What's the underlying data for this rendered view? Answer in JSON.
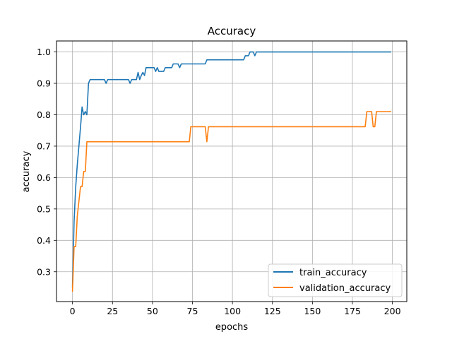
{
  "chart_data": {
    "type": "line",
    "title": "Accuracy",
    "xlabel": "epochs",
    "ylabel": "accuracy",
    "xlim": [
      -10,
      209
    ],
    "ylim": [
      0.205,
      1.035
    ],
    "xticks": [
      0,
      25,
      50,
      75,
      100,
      125,
      150,
      175,
      200
    ],
    "yticks": [
      0.3,
      0.4,
      0.5,
      0.6,
      0.7,
      0.8,
      0.9,
      1.0
    ],
    "ytick_labels": [
      "0.3",
      "0.4",
      "0.5",
      "0.6",
      "0.7",
      "0.8",
      "0.9",
      "1.0"
    ],
    "grid": true,
    "legend_position": "lower-right",
    "series": [
      {
        "name": "train_accuracy",
        "color": "#1f77b4",
        "points": [
          [
            0,
            0.25
          ],
          [
            1,
            0.46
          ],
          [
            2,
            0.57
          ],
          [
            3,
            0.64
          ],
          [
            4,
            0.7
          ],
          [
            5,
            0.76
          ],
          [
            6,
            0.825
          ],
          [
            7,
            0.8
          ],
          [
            8,
            0.81
          ],
          [
            9,
            0.8
          ],
          [
            10,
            0.9
          ],
          [
            11,
            0.912
          ],
          [
            20,
            0.912
          ],
          [
            21,
            0.9
          ],
          [
            22,
            0.912
          ],
          [
            35,
            0.912
          ],
          [
            36,
            0.9
          ],
          [
            37,
            0.912
          ],
          [
            40,
            0.912
          ],
          [
            41,
            0.935
          ],
          [
            42,
            0.912
          ],
          [
            43,
            0.925
          ],
          [
            44,
            0.935
          ],
          [
            45,
            0.925
          ],
          [
            46,
            0.95
          ],
          [
            51,
            0.95
          ],
          [
            52,
            0.938
          ],
          [
            53,
            0.95
          ],
          [
            54,
            0.938
          ],
          [
            57,
            0.938
          ],
          [
            58,
            0.95
          ],
          [
            62,
            0.95
          ],
          [
            63,
            0.962
          ],
          [
            66,
            0.962
          ],
          [
            67,
            0.95
          ],
          [
            68,
            0.962
          ],
          [
            83,
            0.962
          ],
          [
            84,
            0.975
          ],
          [
            107,
            0.975
          ],
          [
            108,
            0.988
          ],
          [
            110,
            0.988
          ],
          [
            111,
            1.0
          ],
          [
            113,
            1.0
          ],
          [
            114,
            0.988
          ],
          [
            115,
            1.0
          ],
          [
            199,
            1.0
          ]
        ]
      },
      {
        "name": "validation_accuracy",
        "color": "#ff7f0e",
        "points": [
          [
            0,
            0.238
          ],
          [
            1,
            0.38
          ],
          [
            2,
            0.38
          ],
          [
            3,
            0.476
          ],
          [
            4,
            0.524
          ],
          [
            5,
            0.571
          ],
          [
            6,
            0.571
          ],
          [
            7,
            0.619
          ],
          [
            8,
            0.619
          ],
          [
            9,
            0.714
          ],
          [
            73,
            0.714
          ],
          [
            74,
            0.762
          ],
          [
            83,
            0.762
          ],
          [
            84,
            0.714
          ],
          [
            85,
            0.762
          ],
          [
            183,
            0.762
          ],
          [
            184,
            0.81
          ],
          [
            187,
            0.81
          ],
          [
            188,
            0.762
          ],
          [
            189,
            0.762
          ],
          [
            190,
            0.81
          ],
          [
            199,
            0.81
          ]
        ]
      }
    ]
  }
}
